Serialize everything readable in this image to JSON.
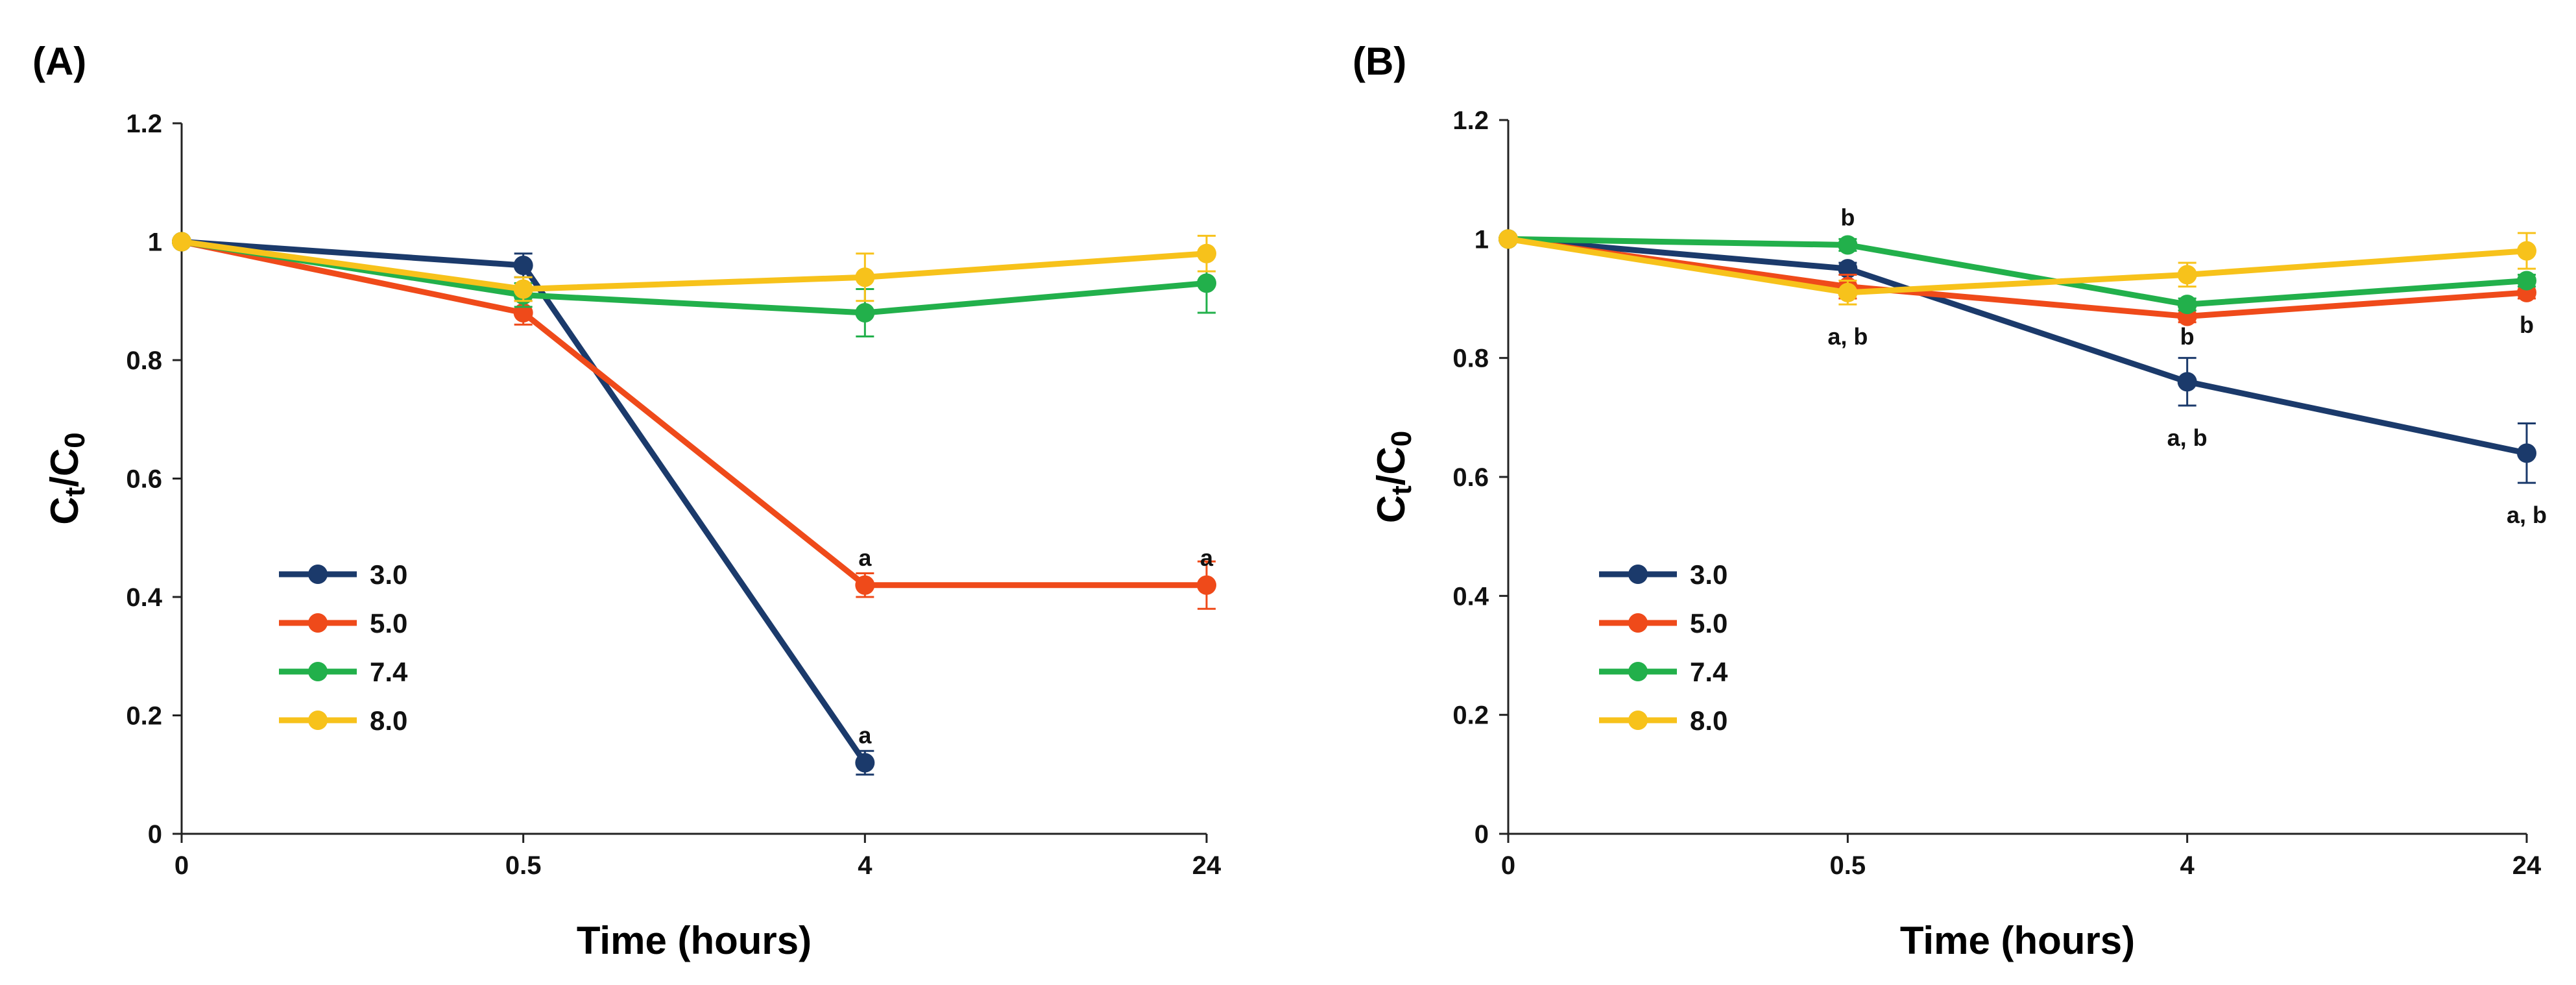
{
  "chart_data": [
    {
      "panel": "(A)",
      "type": "line",
      "xlabel": "Time (hours)",
      "ylabel_main": "C",
      "ylabel_sub1": "t",
      "ylabel_mid": "/C",
      "ylabel_sub2": "0",
      "categories": [
        "0",
        "0.5",
        "4",
        "24"
      ],
      "ylim": [
        0,
        1.2
      ],
      "yticks": [
        "0",
        "0.2",
        "0.4",
        "0.6",
        "0.8",
        "1",
        "1.2"
      ],
      "ytick_values": [
        0,
        0.2,
        0.4,
        0.6,
        0.8,
        1.0,
        1.2
      ],
      "legend_placement": "lower-left",
      "series": [
        {
          "name": "3.0",
          "color": "#1b3a6b",
          "values": [
            1.0,
            0.96,
            0.12,
            null
          ],
          "errors": [
            0,
            0.02,
            0.02,
            null
          ]
        },
        {
          "name": "5.0",
          "color": "#ef4a1a",
          "values": [
            1.0,
            0.88,
            0.42,
            0.42
          ],
          "errors": [
            0,
            0.02,
            0.02,
            0.04
          ]
        },
        {
          "name": "7.4",
          "color": "#22b04b",
          "values": [
            1.0,
            0.91,
            0.88,
            0.93
          ],
          "errors": [
            0,
            0.02,
            0.04,
            0.05
          ]
        },
        {
          "name": "8.0",
          "color": "#f7c21b",
          "values": [
            1.0,
            0.92,
            0.94,
            0.98
          ],
          "errors": [
            0,
            0.02,
            0.04,
            0.03
          ]
        }
      ],
      "annotations": [
        {
          "text": "a",
          "x": 2,
          "y": 0.12,
          "anchor": "above"
        },
        {
          "text": "a",
          "x": 2,
          "y": 0.42,
          "anchor": "above"
        },
        {
          "text": "a",
          "x": 3,
          "y": 0.42,
          "anchor": "above"
        }
      ]
    },
    {
      "panel": "(B)",
      "type": "line",
      "xlabel": "Time (hours)",
      "ylabel_main": "C",
      "ylabel_sub1": "t",
      "ylabel_mid": "/C",
      "ylabel_sub2": "0",
      "categories": [
        "0",
        "0.5",
        "4",
        "24"
      ],
      "ylim": [
        0,
        1.2
      ],
      "yticks": [
        "0",
        "0.2",
        "0.4",
        "0.6",
        "0.8",
        "1",
        "1.2"
      ],
      "ytick_values": [
        0,
        0.2,
        0.4,
        0.6,
        0.8,
        1.0,
        1.2
      ],
      "legend_placement": "lower-left",
      "series": [
        {
          "name": "3.0",
          "color": "#1b3a6b",
          "values": [
            1.0,
            0.95,
            0.76,
            0.64
          ],
          "errors": [
            0,
            0.01,
            0.04,
            0.05
          ]
        },
        {
          "name": "5.0",
          "color": "#ef4a1a",
          "values": [
            1.0,
            0.92,
            0.87,
            0.91
          ],
          "errors": [
            0,
            0.02,
            0.01,
            0.01
          ]
        },
        {
          "name": "7.4",
          "color": "#22b04b",
          "values": [
            1.0,
            0.99,
            0.89,
            0.93
          ],
          "errors": [
            0,
            0.01,
            0.01,
            0.01
          ]
        },
        {
          "name": "8.0",
          "color": "#f7c21b",
          "values": [
            1.0,
            0.91,
            0.94,
            0.98
          ],
          "errors": [
            0,
            0.02,
            0.02,
            0.03
          ]
        }
      ],
      "annotations": [
        {
          "text": "b",
          "x": 1,
          "y": 0.99,
          "anchor": "above"
        },
        {
          "text": "a, b",
          "x": 1,
          "y": 0.89,
          "anchor": "below"
        },
        {
          "text": "b",
          "x": 2,
          "y": 0.89,
          "anchor": "below"
        },
        {
          "text": "a, b",
          "x": 2,
          "y": 0.72,
          "anchor": "below"
        },
        {
          "text": "b",
          "x": 3,
          "y": 0.91,
          "anchor": "below"
        },
        {
          "text": "a, b",
          "x": 3,
          "y": 0.59,
          "anchor": "below"
        }
      ]
    }
  ]
}
